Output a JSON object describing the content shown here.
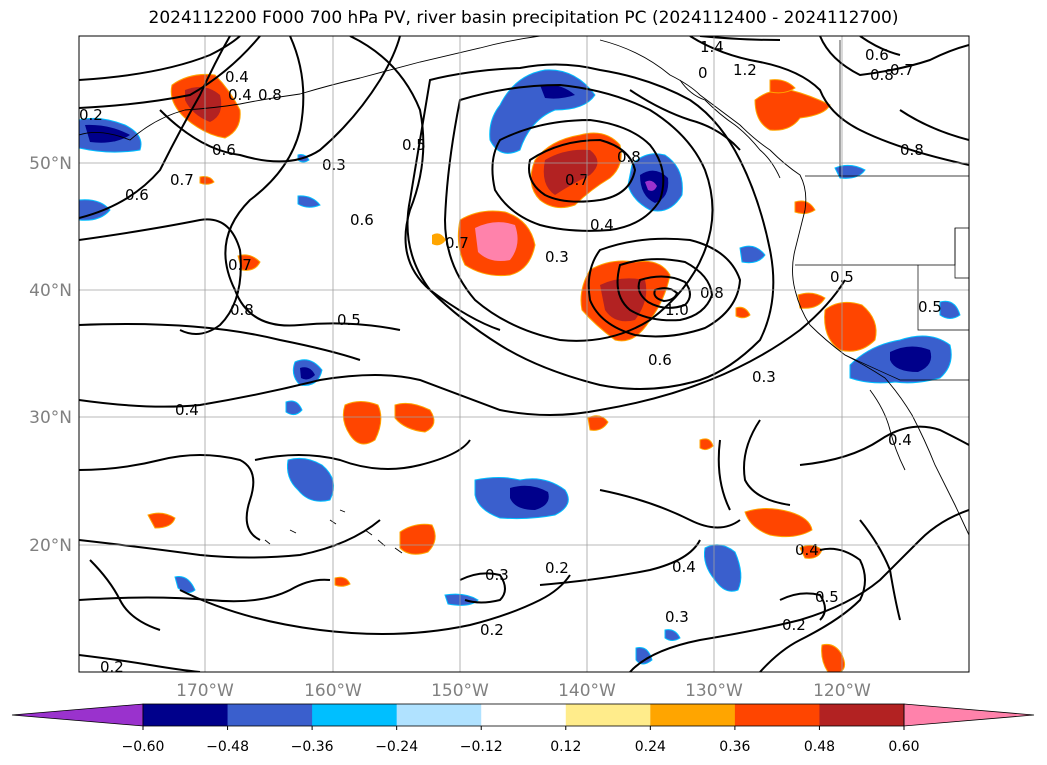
{
  "title": "2024112200 F000 700 hPa PV, river basin precipitation PC (2024112400 - 2024112700)",
  "map": {
    "lat_labels": [
      "50°N",
      "40°N",
      "30°N",
      "20°N"
    ],
    "lon_labels": [
      "170°W",
      "160°W",
      "150°W",
      "140°W",
      "130°W",
      "120°W"
    ],
    "contour_labels": [
      "1.4",
      "1.2",
      "0",
      "0.6",
      "0.7",
      "0.8",
      "0.4",
      "0.4",
      "0.6",
      "0.5",
      "0.3",
      "0.6",
      "0.7",
      "0.6",
      "0.7",
      "0.8",
      "0.5",
      "0.7",
      "0.8",
      "0.4",
      "0.3",
      "1.0",
      "0.8",
      "0.6",
      "0.5",
      "0.5",
      "0.3",
      "0.4",
      "0.4",
      "0.2",
      "0.3",
      "0.4",
      "0.2",
      "0.2",
      "0.3",
      "0.4",
      "0.5",
      "0.2",
      "0.2",
      "0.7",
      "0.8",
      "0.8"
    ]
  },
  "colorbar": {
    "ticks": [
      "−0.60",
      "−0.48",
      "−0.36",
      "−0.24",
      "−0.12",
      "0.12",
      "0.24",
      "0.36",
      "0.48",
      "0.60"
    ],
    "colors": [
      "#9a32cd",
      "#00008b",
      "#3a5fcd",
      "#00bfff",
      "#b0e2ff",
      "#ffffff",
      "#ffec8b",
      "#ffa500",
      "#ff4500",
      "#b22222",
      "#ff82ab"
    ]
  }
}
